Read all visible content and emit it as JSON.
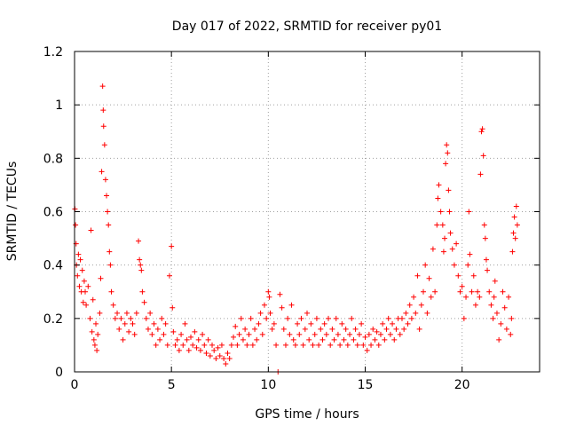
{
  "chart_data": {
    "type": "scatter",
    "title": "Day 017 of 2022, SRMTID for receiver py01",
    "xlabel": "GPS time / hours",
    "ylabel": "SRMTID / TECUs",
    "xlim": [
      0,
      24
    ],
    "ylim": [
      0,
      1.2
    ],
    "grid": true,
    "marker": "+",
    "color": "#ff0000",
    "xticks": [
      {
        "v": 0,
        "label": "0"
      },
      {
        "v": 5,
        "label": "5"
      },
      {
        "v": 10,
        "label": "10"
      },
      {
        "v": 15,
        "label": "15"
      },
      {
        "v": 20,
        "label": "20"
      }
    ],
    "yticks": [
      {
        "v": 0,
        "label": "0"
      },
      {
        "v": 0.2,
        "label": "0.2"
      },
      {
        "v": 0.4,
        "label": "0.4"
      },
      {
        "v": 0.6,
        "label": "0.6"
      },
      {
        "v": 0.8,
        "label": "0.8"
      },
      {
        "v": 1.0,
        "label": "1"
      },
      {
        "v": 1.2,
        "label": "1.2"
      }
    ],
    "series": [
      {
        "name": "SRMTID py01",
        "points": [
          [
            0.02,
            0.61
          ],
          [
            0.05,
            0.55
          ],
          [
            0.08,
            0.48
          ],
          [
            0.1,
            0.4
          ],
          [
            0.15,
            0.36
          ],
          [
            0.2,
            0.44
          ],
          [
            0.25,
            0.32
          ],
          [
            0.3,
            0.42
          ],
          [
            0.35,
            0.3
          ],
          [
            0.4,
            0.38
          ],
          [
            0.45,
            0.26
          ],
          [
            0.5,
            0.34
          ],
          [
            0.55,
            0.3
          ],
          [
            0.6,
            0.25
          ],
          [
            0.7,
            0.32
          ],
          [
            0.8,
            0.2
          ],
          [
            0.85,
            0.53
          ],
          [
            0.9,
            0.15
          ],
          [
            0.95,
            0.27
          ],
          [
            1.0,
            0.12
          ],
          [
            1.05,
            0.1
          ],
          [
            1.1,
            0.18
          ],
          [
            1.15,
            0.08
          ],
          [
            1.2,
            0.14
          ],
          [
            1.3,
            0.22
          ],
          [
            1.35,
            0.35
          ],
          [
            1.4,
            0.75
          ],
          [
            1.45,
            1.07
          ],
          [
            1.48,
            0.98
          ],
          [
            1.5,
            0.92
          ],
          [
            1.55,
            0.85
          ],
          [
            1.6,
            0.72
          ],
          [
            1.65,
            0.66
          ],
          [
            1.7,
            0.6
          ],
          [
            1.75,
            0.55
          ],
          [
            1.8,
            0.45
          ],
          [
            1.85,
            0.4
          ],
          [
            1.9,
            0.3
          ],
          [
            2.0,
            0.25
          ],
          [
            2.1,
            0.2
          ],
          [
            2.2,
            0.22
          ],
          [
            2.3,
            0.16
          ],
          [
            2.4,
            0.2
          ],
          [
            2.5,
            0.12
          ],
          [
            2.6,
            0.18
          ],
          [
            2.7,
            0.22
          ],
          [
            2.8,
            0.15
          ],
          [
            2.9,
            0.2
          ],
          [
            3.0,
            0.18
          ],
          [
            3.1,
            0.14
          ],
          [
            3.2,
            0.22
          ],
          [
            3.3,
            0.49
          ],
          [
            3.35,
            0.42
          ],
          [
            3.4,
            0.4
          ],
          [
            3.45,
            0.38
          ],
          [
            3.5,
            0.3
          ],
          [
            3.6,
            0.26
          ],
          [
            3.7,
            0.2
          ],
          [
            3.8,
            0.16
          ],
          [
            3.9,
            0.22
          ],
          [
            4.0,
            0.14
          ],
          [
            4.1,
            0.18
          ],
          [
            4.2,
            0.1
          ],
          [
            4.3,
            0.16
          ],
          [
            4.4,
            0.12
          ],
          [
            4.5,
            0.2
          ],
          [
            4.6,
            0.14
          ],
          [
            4.7,
            0.18
          ],
          [
            4.8,
            0.1
          ],
          [
            4.9,
            0.36
          ],
          [
            5.0,
            0.47
          ],
          [
            5.05,
            0.24
          ],
          [
            5.1,
            0.15
          ],
          [
            5.2,
            0.1
          ],
          [
            5.3,
            0.12
          ],
          [
            5.4,
            0.08
          ],
          [
            5.5,
            0.14
          ],
          [
            5.6,
            0.1
          ],
          [
            5.7,
            0.18
          ],
          [
            5.8,
            0.12
          ],
          [
            5.9,
            0.08
          ],
          [
            6.0,
            0.13
          ],
          [
            6.1,
            0.1
          ],
          [
            6.2,
            0.15
          ],
          [
            6.3,
            0.09
          ],
          [
            6.4,
            0.12
          ],
          [
            6.5,
            0.08
          ],
          [
            6.6,
            0.14
          ],
          [
            6.7,
            0.1
          ],
          [
            6.8,
            0.07
          ],
          [
            6.9,
            0.12
          ],
          [
            7.0,
            0.06
          ],
          [
            7.1,
            0.1
          ],
          [
            7.2,
            0.08
          ],
          [
            7.3,
            0.05
          ],
          [
            7.4,
            0.09
          ],
          [
            7.5,
            0.06
          ],
          [
            7.6,
            0.1
          ],
          [
            7.7,
            0.05
          ],
          [
            7.8,
            0.03
          ],
          [
            7.9,
            0.07
          ],
          [
            8.0,
            0.05
          ],
          [
            8.1,
            0.1
          ],
          [
            8.2,
            0.13
          ],
          [
            8.3,
            0.17
          ],
          [
            8.4,
            0.1
          ],
          [
            8.5,
            0.14
          ],
          [
            8.6,
            0.2
          ],
          [
            8.7,
            0.12
          ],
          [
            8.8,
            0.16
          ],
          [
            8.9,
            0.1
          ],
          [
            9.0,
            0.14
          ],
          [
            9.1,
            0.2
          ],
          [
            9.2,
            0.1
          ],
          [
            9.3,
            0.16
          ],
          [
            9.4,
            0.12
          ],
          [
            9.5,
            0.18
          ],
          [
            9.6,
            0.22
          ],
          [
            9.7,
            0.14
          ],
          [
            9.8,
            0.25
          ],
          [
            9.9,
            0.2
          ],
          [
            10.0,
            0.3
          ],
          [
            10.05,
            0.28
          ],
          [
            10.1,
            0.22
          ],
          [
            10.2,
            0.16
          ],
          [
            10.3,
            0.18
          ],
          [
            10.4,
            0.1
          ],
          [
            10.5,
            0.0
          ],
          [
            10.6,
            0.29
          ],
          [
            10.7,
            0.24
          ],
          [
            10.8,
            0.16
          ],
          [
            10.9,
            0.1
          ],
          [
            11.0,
            0.2
          ],
          [
            11.1,
            0.14
          ],
          [
            11.2,
            0.25
          ],
          [
            11.3,
            0.12
          ],
          [
            11.4,
            0.1
          ],
          [
            11.5,
            0.18
          ],
          [
            11.6,
            0.14
          ],
          [
            11.7,
            0.2
          ],
          [
            11.8,
            0.1
          ],
          [
            11.9,
            0.16
          ],
          [
            12.0,
            0.22
          ],
          [
            12.1,
            0.12
          ],
          [
            12.2,
            0.18
          ],
          [
            12.3,
            0.1
          ],
          [
            12.4,
            0.14
          ],
          [
            12.5,
            0.2
          ],
          [
            12.6,
            0.1
          ],
          [
            12.7,
            0.16
          ],
          [
            12.8,
            0.12
          ],
          [
            12.9,
            0.18
          ],
          [
            13.0,
            0.14
          ],
          [
            13.1,
            0.2
          ],
          [
            13.2,
            0.1
          ],
          [
            13.3,
            0.16
          ],
          [
            13.4,
            0.12
          ],
          [
            13.5,
            0.2
          ],
          [
            13.6,
            0.14
          ],
          [
            13.7,
            0.1
          ],
          [
            13.8,
            0.18
          ],
          [
            13.9,
            0.12
          ],
          [
            14.0,
            0.16
          ],
          [
            14.1,
            0.1
          ],
          [
            14.2,
            0.14
          ],
          [
            14.3,
            0.2
          ],
          [
            14.4,
            0.12
          ],
          [
            14.5,
            0.16
          ],
          [
            14.6,
            0.1
          ],
          [
            14.7,
            0.14
          ],
          [
            14.8,
            0.18
          ],
          [
            14.9,
            0.1
          ],
          [
            15.0,
            0.13
          ],
          [
            15.1,
            0.08
          ],
          [
            15.2,
            0.14
          ],
          [
            15.3,
            0.1
          ],
          [
            15.4,
            0.16
          ],
          [
            15.5,
            0.12
          ],
          [
            15.6,
            0.15
          ],
          [
            15.7,
            0.1
          ],
          [
            15.8,
            0.14
          ],
          [
            15.9,
            0.18
          ],
          [
            16.0,
            0.12
          ],
          [
            16.1,
            0.16
          ],
          [
            16.2,
            0.2
          ],
          [
            16.3,
            0.14
          ],
          [
            16.4,
            0.18
          ],
          [
            16.5,
            0.12
          ],
          [
            16.6,
            0.16
          ],
          [
            16.7,
            0.2
          ],
          [
            16.8,
            0.14
          ],
          [
            16.9,
            0.2
          ],
          [
            17.0,
            0.16
          ],
          [
            17.1,
            0.22
          ],
          [
            17.2,
            0.18
          ],
          [
            17.3,
            0.25
          ],
          [
            17.4,
            0.2
          ],
          [
            17.5,
            0.28
          ],
          [
            17.6,
            0.22
          ],
          [
            17.7,
            0.36
          ],
          [
            17.8,
            0.16
          ],
          [
            17.9,
            0.25
          ],
          [
            18.0,
            0.3
          ],
          [
            18.1,
            0.4
          ],
          [
            18.2,
            0.22
          ],
          [
            18.3,
            0.35
          ],
          [
            18.4,
            0.28
          ],
          [
            18.5,
            0.46
          ],
          [
            18.6,
            0.3
          ],
          [
            18.7,
            0.55
          ],
          [
            18.75,
            0.65
          ],
          [
            18.8,
            0.7
          ],
          [
            18.9,
            0.6
          ],
          [
            19.0,
            0.55
          ],
          [
            19.05,
            0.45
          ],
          [
            19.1,
            0.5
          ],
          [
            19.15,
            0.78
          ],
          [
            19.2,
            0.85
          ],
          [
            19.25,
            0.82
          ],
          [
            19.3,
            0.68
          ],
          [
            19.35,
            0.6
          ],
          [
            19.4,
            0.52
          ],
          [
            19.5,
            0.46
          ],
          [
            19.6,
            0.4
          ],
          [
            19.7,
            0.48
          ],
          [
            19.8,
            0.36
          ],
          [
            19.9,
            0.3
          ],
          [
            20.0,
            0.32
          ],
          [
            20.1,
            0.2
          ],
          [
            20.2,
            0.28
          ],
          [
            20.3,
            0.4
          ],
          [
            20.35,
            0.6
          ],
          [
            20.4,
            0.44
          ],
          [
            20.5,
            0.3
          ],
          [
            20.6,
            0.36
          ],
          [
            20.7,
            0.25
          ],
          [
            20.8,
            0.3
          ],
          [
            20.9,
            0.28
          ],
          [
            20.95,
            0.74
          ],
          [
            21.0,
            0.9
          ],
          [
            21.05,
            0.91
          ],
          [
            21.1,
            0.81
          ],
          [
            21.15,
            0.55
          ],
          [
            21.2,
            0.5
          ],
          [
            21.25,
            0.42
          ],
          [
            21.3,
            0.38
          ],
          [
            21.4,
            0.3
          ],
          [
            21.5,
            0.25
          ],
          [
            21.6,
            0.2
          ],
          [
            21.65,
            0.28
          ],
          [
            21.7,
            0.34
          ],
          [
            21.8,
            0.22
          ],
          [
            21.9,
            0.12
          ],
          [
            22.0,
            0.18
          ],
          [
            22.1,
            0.3
          ],
          [
            22.2,
            0.24
          ],
          [
            22.3,
            0.16
          ],
          [
            22.4,
            0.28
          ],
          [
            22.5,
            0.14
          ],
          [
            22.55,
            0.2
          ],
          [
            22.6,
            0.45
          ],
          [
            22.65,
            0.52
          ],
          [
            22.7,
            0.58
          ],
          [
            22.75,
            0.5
          ],
          [
            22.8,
            0.62
          ],
          [
            22.85,
            0.55
          ]
        ]
      }
    ]
  }
}
